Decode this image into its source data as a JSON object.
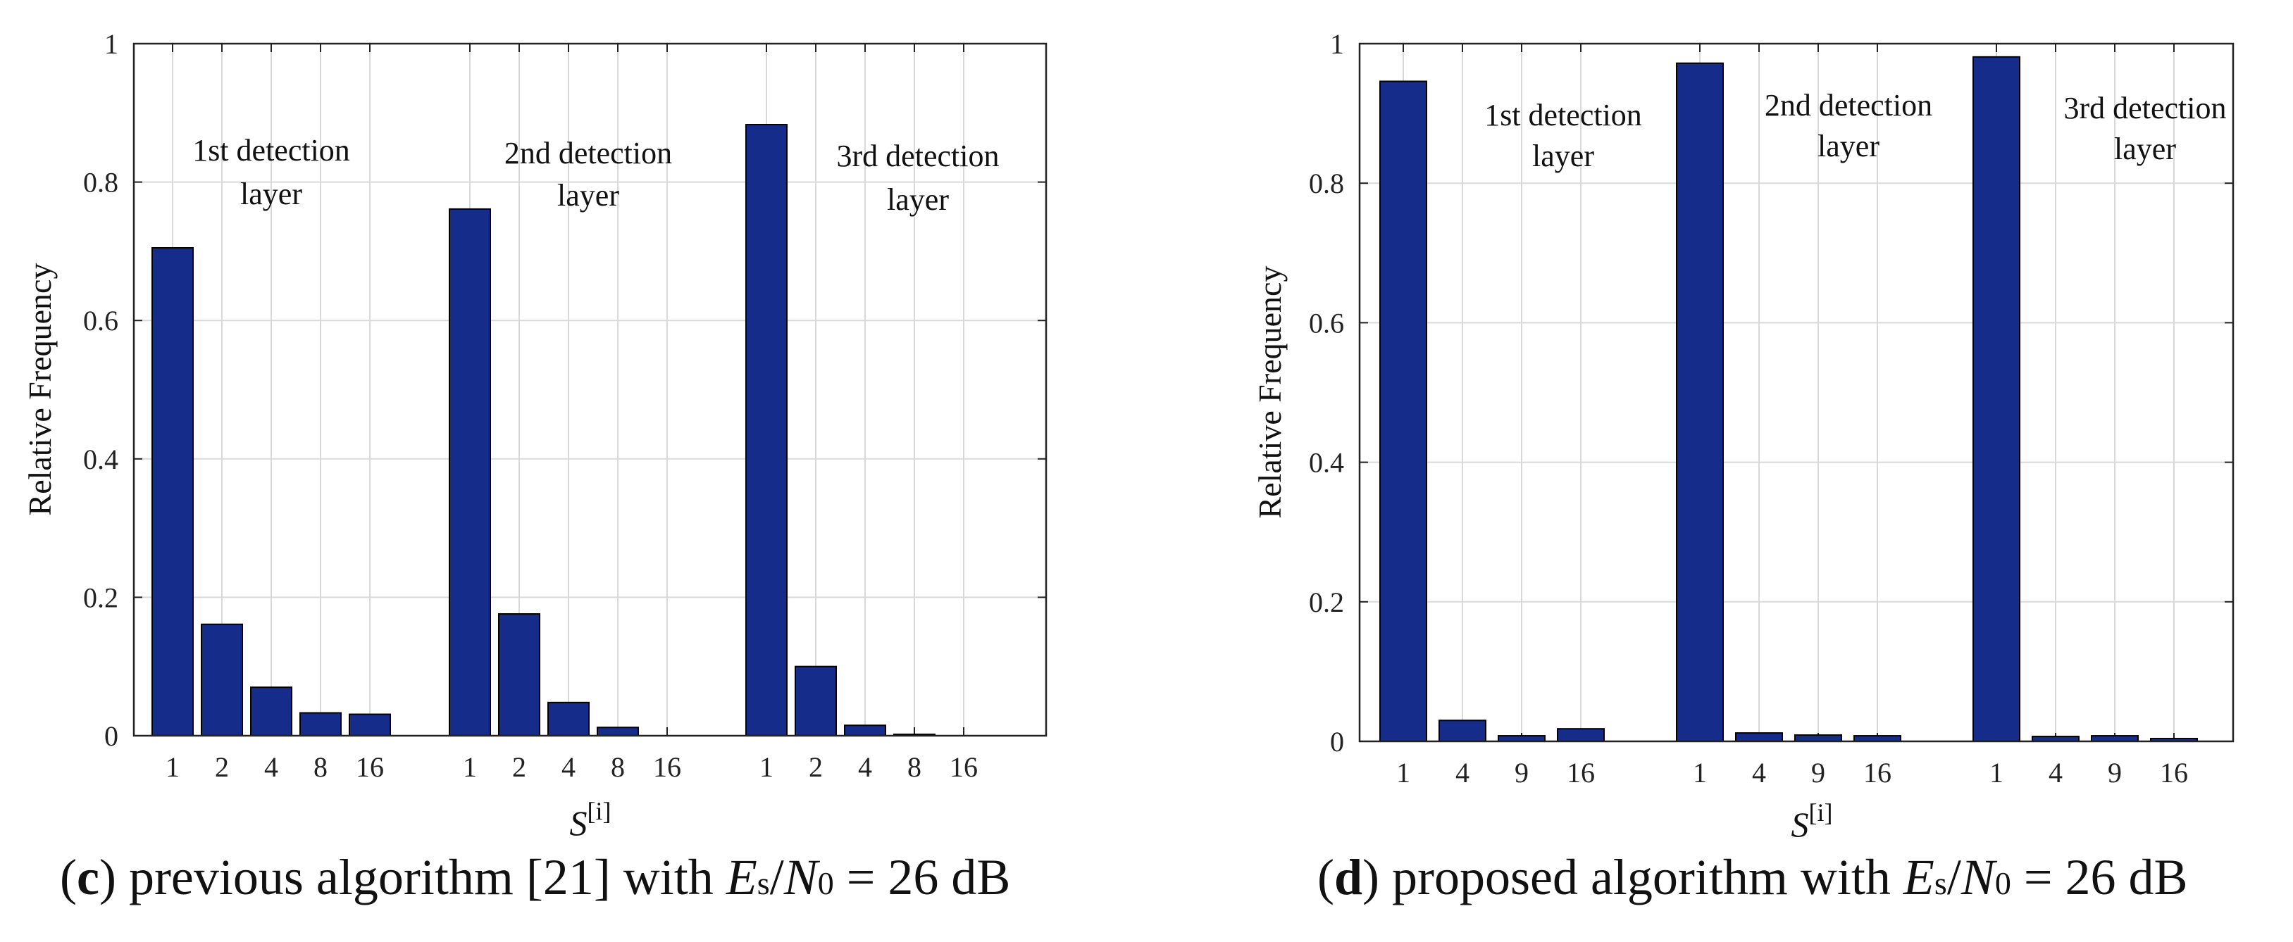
{
  "colors": {
    "bar": "#162C8A",
    "bar_edge": "#000000",
    "grid": "#d9d9d9",
    "axis": "#222222"
  },
  "chart_data": [
    {
      "type": "bar",
      "ylabel": "Relative Frequency",
      "xlabel": {
        "symbol": "S",
        "superscript": "[i]"
      },
      "ylim": [
        0,
        1
      ],
      "yticks": [
        0,
        0.2,
        0.4,
        0.6,
        0.8,
        1
      ],
      "ytick_labels": [
        "0",
        "0.2",
        "0.4",
        "0.6",
        "0.8",
        "1"
      ],
      "grid": true,
      "groups": [
        {
          "annotation": [
            "1st detection",
            "layer"
          ],
          "categories": [
            "1",
            "2",
            "4",
            "8",
            "16"
          ],
          "values": [
            0.705,
            0.161,
            0.07,
            0.033,
            0.031
          ]
        },
        {
          "annotation": [
            "2nd detection",
            "layer"
          ],
          "categories": [
            "1",
            "2",
            "4",
            "8",
            "16"
          ],
          "values": [
            0.761,
            0.176,
            0.048,
            0.012,
            0.0
          ]
        },
        {
          "annotation": [
            "3rd detection",
            "layer"
          ],
          "categories": [
            "1",
            "2",
            "4",
            "8",
            "16"
          ],
          "values": [
            0.883,
            0.1,
            0.015,
            0.002,
            0.0
          ]
        }
      ],
      "caption": {
        "letter": "c",
        "text": "previous algorithm [21] with",
        "es": "E",
        "es_sub": "s",
        "slash": "/",
        "n0": "N",
        "n0_sub": "0",
        "tail": "= 26 dB"
      }
    },
    {
      "type": "bar",
      "ylabel": "Relative Frequency",
      "xlabel": {
        "symbol": "S",
        "superscript": "[i]"
      },
      "ylim": [
        0,
        1
      ],
      "yticks": [
        0,
        0.2,
        0.4,
        0.6,
        0.8,
        1
      ],
      "ytick_labels": [
        "0",
        "0.2",
        "0.4",
        "0.6",
        "0.8",
        "1"
      ],
      "grid": true,
      "groups": [
        {
          "annotation": [
            "1st detection",
            "layer"
          ],
          "categories": [
            "1",
            "4",
            "9",
            "16"
          ],
          "values": [
            0.946,
            0.03,
            0.008,
            0.018
          ]
        },
        {
          "annotation": [
            "2nd detection",
            "layer"
          ],
          "categories": [
            "1",
            "4",
            "9",
            "16"
          ],
          "values": [
            0.972,
            0.012,
            0.009,
            0.008
          ]
        },
        {
          "annotation": [
            "3rd detection",
            "layer"
          ],
          "categories": [
            "1",
            "4",
            "9",
            "16"
          ],
          "values": [
            0.981,
            0.007,
            0.008,
            0.004
          ]
        }
      ],
      "caption": {
        "letter": "d",
        "text": "proposed algorithm with",
        "es": "E",
        "es_sub": "s",
        "slash": "/",
        "n0": "N",
        "n0_sub": "0",
        "tail": "= 26 dB"
      }
    }
  ]
}
